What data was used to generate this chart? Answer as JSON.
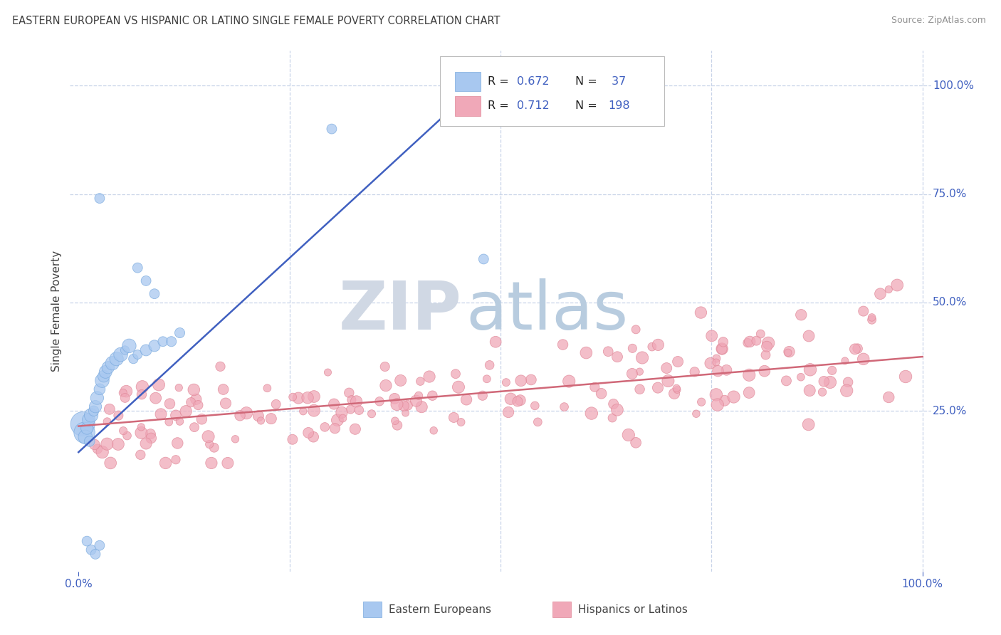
{
  "title": "EASTERN EUROPEAN VS HISPANIC OR LATINO SINGLE FEMALE POVERTY CORRELATION CHART",
  "source": "Source: ZipAtlas.com",
  "ylabel": "Single Female Poverty",
  "blue_color": "#a8c8f0",
  "blue_edge_color": "#7aaade",
  "pink_color": "#f0a8b8",
  "pink_edge_color": "#e08898",
  "blue_line_color": "#4060c0",
  "pink_line_color": "#d06878",
  "background_color": "#ffffff",
  "grid_color": "#c8d4e8",
  "title_color": "#404040",
  "source_color": "#909090",
  "axis_label_color": "#404040",
  "tick_color": "#4060c0",
  "watermark_zip_color": "#d8dde8",
  "watermark_atlas_color": "#b8cce8",
  "blue_N": 37,
  "pink_N": 198,
  "blue_line_x0": 0.0,
  "blue_line_y0": 0.155,
  "blue_line_x1": 0.5,
  "blue_line_y1": 1.05,
  "pink_line_x0": 0.0,
  "pink_line_x1": 1.0,
  "pink_line_y0": 0.215,
  "pink_line_y1": 0.375,
  "ymin": -0.12,
  "ymax": 1.08,
  "xmin": -0.01,
  "xmax": 1.01
}
